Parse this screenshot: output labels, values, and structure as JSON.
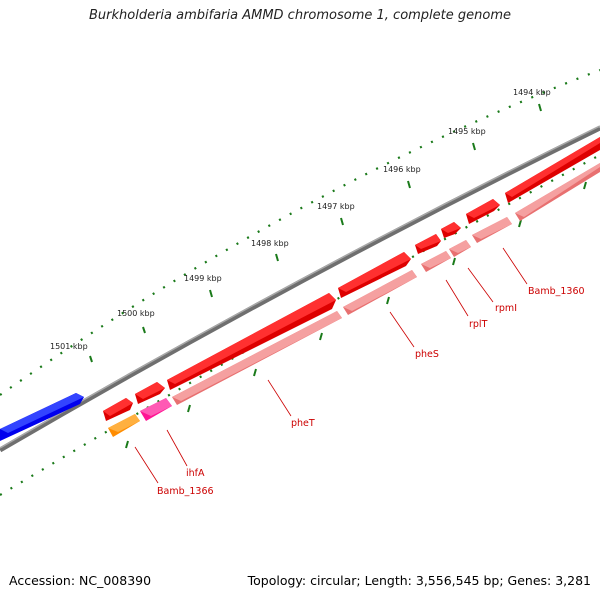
{
  "title": "Burkholderia ambifaria AMMD chromosome 1, complete genome",
  "footer": {
    "accession": "Accession: NC_008390",
    "summary": "Topology: circular; Length: 3,556,545 bp; Genes: 3,281"
  },
  "scale_labels": [
    "1501 kbp",
    "1500 kbp",
    "1499 kbp",
    "1498 kbp",
    "1497 kbp",
    "1496 kbp",
    "1495 kbp",
    "1494 kbp"
  ],
  "genes": [
    {
      "name": "Bamb_1366",
      "color": "#ff8c00"
    },
    {
      "name": "ihfA",
      "color": "#ff1493"
    },
    {
      "name": "pheT",
      "color": "#ff0000"
    },
    {
      "name": "pheS",
      "color": "#ff0000"
    },
    {
      "name": "rplT",
      "color": "#ff0000"
    },
    {
      "name": "rpmI",
      "color": "#ff0000"
    },
    {
      "name": "Bamb_1360",
      "color": "#ff0000"
    }
  ],
  "colors": {
    "backbone": "#808080",
    "forward_gene": "#ff0000",
    "reverse_gene": "#f08080",
    "upstream_gene": "#0000ff",
    "tick": "#1a7a1a",
    "label_line": "#cc0000"
  }
}
